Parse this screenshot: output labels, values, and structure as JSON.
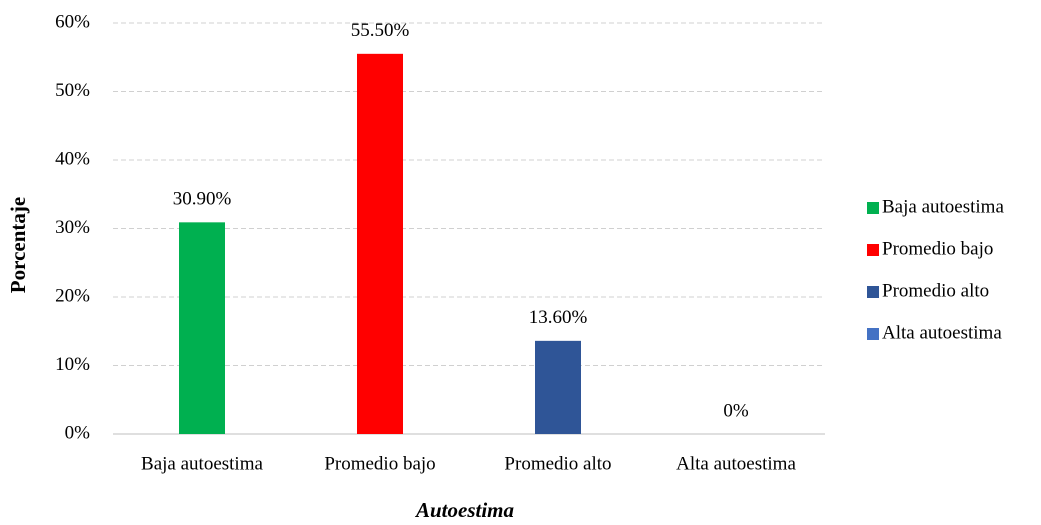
{
  "chart_data": {
    "type": "bar",
    "categories": [
      "Baja autoestima",
      "Promedio bajo",
      "Promedio alto",
      "Alta autoestima"
    ],
    "values": [
      30.9,
      55.5,
      13.6,
      0
    ],
    "value_labels": [
      "30.90%",
      "55.50%",
      "13.60%",
      "0%"
    ],
    "colors": [
      "#00b050",
      "#ff0000",
      "#2f5597",
      "#4472c4"
    ],
    "x_label": "Autoestima",
    "y_label": "Porcentaje",
    "ylim": [
      0,
      60
    ],
    "yticks": [
      {
        "value": 0,
        "label": "0%"
      },
      {
        "value": 10,
        "label": "10%"
      },
      {
        "value": 20,
        "label": "20%"
      },
      {
        "value": 30,
        "label": "30%"
      },
      {
        "value": 40,
        "label": "40%"
      },
      {
        "value": 50,
        "label": "50%"
      },
      {
        "value": 60,
        "label": "60%"
      }
    ],
    "grid": true,
    "legend": "right"
  }
}
